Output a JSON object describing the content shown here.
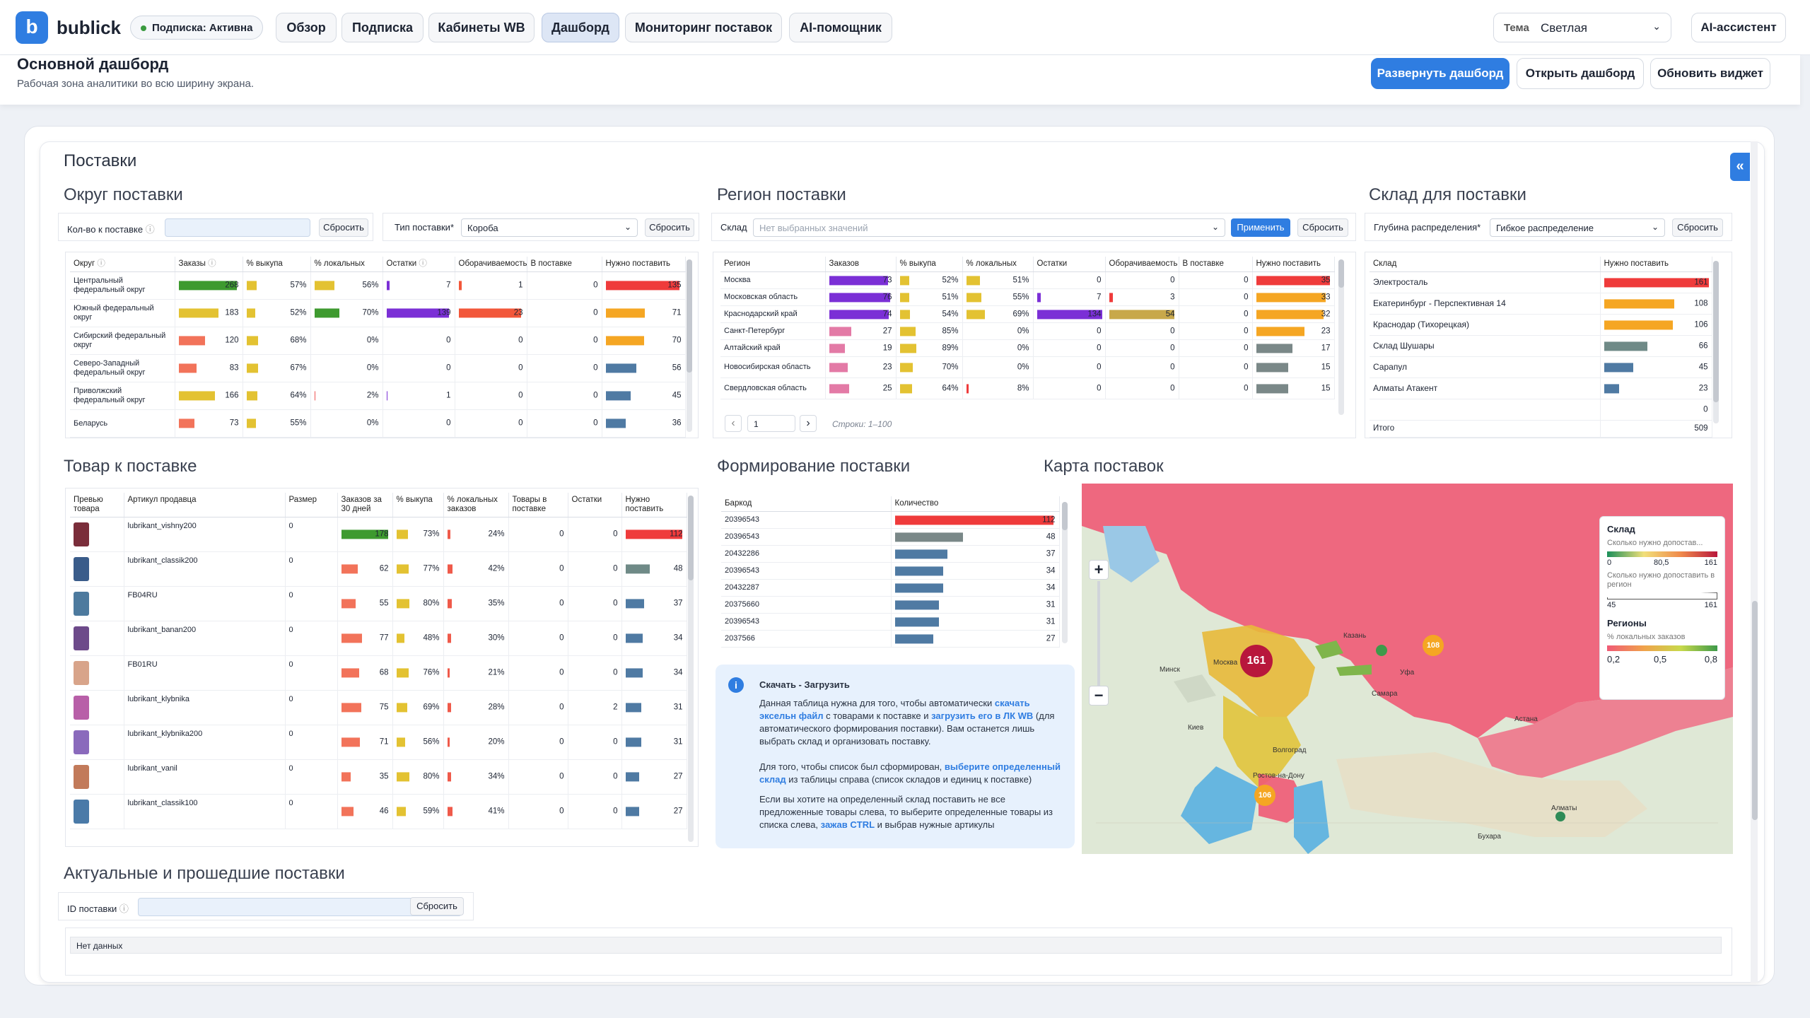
{
  "nav": {
    "logo_letter": "b",
    "brand": "bublick",
    "subscription": "Подписка: Активна",
    "tabs": [
      "Обзор",
      "Подписка",
      "Кабинеты WB",
      "Дашборд",
      "Мониторинг поставок",
      "AI-помощник"
    ],
    "active_tab": "Дашборд",
    "theme_label": "Тема",
    "theme_value": "Светлая",
    "ai_assistant": "AI-ассистент"
  },
  "header": {
    "title": "Основной дашборд",
    "subtitle": "Рабочая зона аналитики во всю ширину экрана.",
    "btn_expand": "Развернуть дашборд",
    "btn_open": "Открыть дашборд",
    "btn_refresh": "Обновить виджет"
  },
  "dashboard": {
    "title": "Поставки",
    "collapse_icon": "«"
  },
  "okrug": {
    "title": "Округ поставки",
    "qty_label": "Кол-во к поставке",
    "reset": "Сбросить",
    "type_label": "Тип поставки*",
    "type_value": "Короба",
    "reset2": "Сбросить",
    "headers": [
      "Округ",
      "Заказы",
      "% выкупа",
      "% локальных",
      "Остатки",
      "Оборачиваемость",
      "В поставке",
      "Нужно поставить"
    ],
    "rows": [
      {
        "name": "Центральный федеральный округ",
        "orders": 268,
        "buyout": "57%",
        "local": "56%",
        "stock": 7,
        "turn": 1,
        "insupply": 0,
        "need": 135
      },
      {
        "name": "Южный федеральный округ",
        "orders": 183,
        "buyout": "52%",
        "local": "70%",
        "stock": 139,
        "turn": 23,
        "insupply": 0,
        "need": 71
      },
      {
        "name": "Сибирский федеральный округ",
        "orders": 120,
        "buyout": "68%",
        "local": "0%",
        "stock": 0,
        "turn": 0,
        "insupply": 0,
        "need": 70
      },
      {
        "name": "Северо-Западный федеральный округ",
        "orders": 83,
        "buyout": "67%",
        "local": "0%",
        "stock": 0,
        "turn": 0,
        "insupply": 0,
        "need": 56
      },
      {
        "name": "Приволжский федеральный округ",
        "orders": 166,
        "buyout": "64%",
        "local": "2%",
        "stock": 1,
        "turn": 0,
        "insupply": 0,
        "need": 45
      },
      {
        "name": "Беларусь",
        "orders": 73,
        "buyout": "55%",
        "local": "0%",
        "stock": 0,
        "turn": 0,
        "insupply": 0,
        "need": 36
      }
    ]
  },
  "region": {
    "title": "Регион поставки",
    "wh_label": "Склад",
    "wh_placeholder": "Нет выбранных значений",
    "apply": "Применить",
    "reset": "Сбросить",
    "headers": [
      "Регион",
      "Заказов",
      "% выкупа",
      "% локальных",
      "Остатки",
      "Оборачиваемость",
      "В поставке",
      "Нужно поставить"
    ],
    "rows": [
      {
        "name": "Москва",
        "orders": 73,
        "buyout": "52%",
        "local": "51%",
        "stock": 0,
        "turn": 0,
        "insupply": 0,
        "need": 35
      },
      {
        "name": "Московская область",
        "orders": 76,
        "buyout": "51%",
        "local": "55%",
        "stock": 7,
        "turn": 3,
        "insupply": 0,
        "need": 33
      },
      {
        "name": "Краснодарский край",
        "orders": 74,
        "buyout": "54%",
        "local": "69%",
        "stock": 134,
        "turn": 54,
        "insupply": 0,
        "need": 32
      },
      {
        "name": "Санкт-Петербург",
        "orders": 27,
        "buyout": "85%",
        "local": "0%",
        "stock": 0,
        "turn": 0,
        "insupply": 0,
        "need": 23
      },
      {
        "name": "Алтайский край",
        "orders": 19,
        "buyout": "89%",
        "local": "0%",
        "stock": 0,
        "turn": 0,
        "insupply": 0,
        "need": 17
      },
      {
        "name": "Новосибирская область",
        "orders": 23,
        "buyout": "70%",
        "local": "0%",
        "stock": 0,
        "turn": 0,
        "insupply": 0,
        "need": 15
      },
      {
        "name": "Свердловская область",
        "orders": 25,
        "buyout": "64%",
        "local": "8%",
        "stock": 0,
        "turn": 0,
        "insupply": 0,
        "need": 15
      }
    ],
    "page": "1",
    "rows_info": "Строки: 1–100"
  },
  "sklad": {
    "title": "Склад для поставки",
    "depth_label": "Глубина распределения*",
    "depth_value": "Гибкое распределение",
    "reset": "Сбросить",
    "headers": [
      "Склад",
      "Нужно поставить"
    ],
    "rows": [
      {
        "name": "Электросталь",
        "need": 161
      },
      {
        "name": "Екатеринбург - Перспективная 14",
        "need": 108
      },
      {
        "name": "Краснодар (Тихорецкая)",
        "need": 106
      },
      {
        "name": "Склад Шушары",
        "need": 66
      },
      {
        "name": "Сарапул",
        "need": 45
      },
      {
        "name": "Алматы Атакент",
        "need": 23
      },
      {
        "name": "",
        "need": 0
      }
    ],
    "total_label": "Итого",
    "total": 509
  },
  "tovar": {
    "title": "Товар к поставке",
    "headers": [
      "Превью товара",
      "Артикул продавца",
      "Размер",
      "Заказов за 30 дней",
      "% выкупа",
      "% локальных заказов",
      "Товары в поставке",
      "Остатки",
      "Нужно поставить"
    ],
    "rows": [
      {
        "sku": "lubrikant_vishny200",
        "size": "0",
        "orders": 178,
        "buyout": "73%",
        "local": "24%",
        "insupply": 0,
        "stock": 0,
        "need": 112
      },
      {
        "sku": "lubrikant_classik200",
        "size": "0",
        "orders": 62,
        "buyout": "77%",
        "local": "42%",
        "insupply": 0,
        "stock": 0,
        "need": 48
      },
      {
        "sku": "FB04RU",
        "size": "0",
        "orders": 55,
        "buyout": "80%",
        "local": "35%",
        "insupply": 0,
        "stock": 0,
        "need": 37
      },
      {
        "sku": "lubrikant_banan200",
        "size": "0",
        "orders": 77,
        "buyout": "48%",
        "local": "30%",
        "insupply": 0,
        "stock": 0,
        "need": 34
      },
      {
        "sku": "FB01RU",
        "size": "0",
        "orders": 68,
        "buyout": "76%",
        "local": "21%",
        "insupply": 0,
        "stock": 0,
        "need": 34
      },
      {
        "sku": "lubrikant_klybnika",
        "size": "0",
        "orders": 75,
        "buyout": "69%",
        "local": "28%",
        "insupply": 0,
        "stock": 2,
        "need": 31
      },
      {
        "sku": "lubrikant_klybnika200",
        "size": "0",
        "orders": 71,
        "buyout": "56%",
        "local": "20%",
        "insupply": 0,
        "stock": 0,
        "need": 31
      },
      {
        "sku": "lubrikant_vanil",
        "size": "0",
        "orders": 35,
        "buyout": "80%",
        "local": "34%",
        "insupply": 0,
        "stock": 0,
        "need": 27
      },
      {
        "sku": "lubrikant_classik100",
        "size": "0",
        "orders": 46,
        "buyout": "59%",
        "local": "41%",
        "insupply": 0,
        "stock": 0,
        "need": 27
      }
    ]
  },
  "formation": {
    "title": "Формирование поставки",
    "headers": [
      "Баркод",
      "Количество"
    ],
    "rows": [
      {
        "code": "20396543",
        "qty": 112
      },
      {
        "code": "20396543",
        "qty": 48
      },
      {
        "code": "20432286",
        "qty": 37
      },
      {
        "code": "20396543",
        "qty": 34
      },
      {
        "code": "20432287",
        "qty": 34
      },
      {
        "code": "20375660",
        "qty": 31
      },
      {
        "code": "20396543",
        "qty": 31
      },
      {
        "code": "2037566",
        "qty": 27
      }
    ]
  },
  "info": {
    "icon": "i",
    "title": "Скачать - Загрузить",
    "p1_a": "Данная таблица нужна для того, чтобы автоматически ",
    "p1_link1": "скачать эксельн файл",
    "p1_b": " с товарами к поставке и ",
    "p1_link2": "загрузить его в ЛК WB",
    "p1_c": " (для автоматического формирования поставки). Вам останется лишь выбрать склад и организовать поставку.",
    "p2_a": "Для того, чтобы список был сформирован, ",
    "p2_link": "выберите определенный склад",
    "p2_b": " из таблицы справа (список складов и единиц к поставке)",
    "p3_a": "Если вы хотите на определенный склад поставить не все предложенные товары слева, то выберите определенные товары из списка слева, ",
    "p3_link": "зажав CTRL",
    "p3_b": " и выбрав нужные артикулы"
  },
  "map": {
    "title": "Карта поставок",
    "zoom_in": "+",
    "zoom_out": "−",
    "markers": [
      161,
      108,
      106
    ],
    "legend": {
      "sklad_title": "Склад",
      "sklad_sub": "Сколько нужно допостав...",
      "sklad_min": "0",
      "sklad_mid": "80,5",
      "sklad_max": "161",
      "size_sub": "Сколько нужно допоставить в регион",
      "size_min": "45",
      "size_max": "161",
      "reg_title": "Регионы",
      "reg_sub": "% локальных заказов",
      "reg_min": "0,2",
      "reg_mid": "0,5",
      "reg_max": "0,8"
    },
    "labels": [
      "Москва",
      "Уфа",
      "Самара",
      "Казань",
      "Волгоград",
      "Ростов-на-Дону",
      "Минск",
      "Киев",
      "Астана",
      "Алматы",
      "Бухара"
    ]
  },
  "history": {
    "title": "Актуальные и прошедшие поставки",
    "id_label": "ID поставки",
    "reset": "Сбросить",
    "empty": "Нет данных"
  },
  "colors": {
    "accent": "#2f7de1",
    "green": "#3e9a2f",
    "yellow": "#e3c232",
    "orange": "#f5a623",
    "red": "#ef3b3b",
    "purple": "#7b2fd6",
    "steel": "#4f7aa3",
    "pink": "#e37aa6",
    "salmon": "#f2735a"
  }
}
